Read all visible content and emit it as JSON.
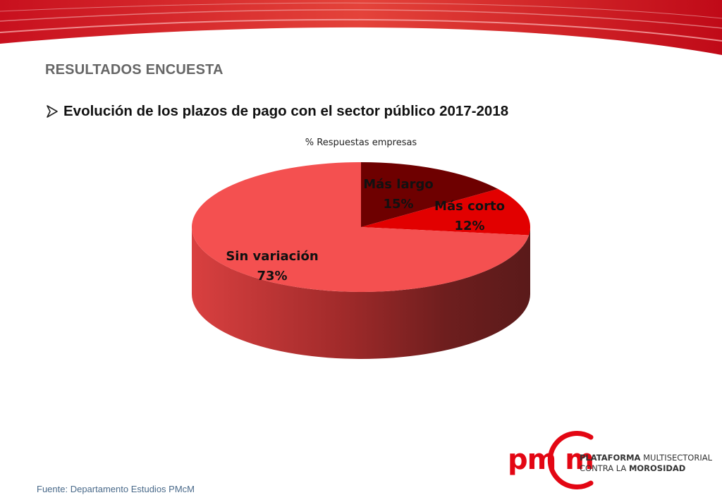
{
  "header": {
    "section_title": "RESULTADOS ENCUESTA",
    "bullet_title": "Evolución de los plazos de pago con el sector público 2017-2018"
  },
  "chart_data": {
    "type": "pie",
    "title": "% Respuestas empresas",
    "style": "3d",
    "slices": [
      {
        "name": "Más largo",
        "value": 15,
        "label": "15%",
        "color": "#6e0000"
      },
      {
        "name": "Más corto",
        "value": 12,
        "label": "12%",
        "color": "#e20000"
      },
      {
        "name": "Sin variación",
        "value": 73,
        "label": "73%",
        "color": "#f45050"
      }
    ]
  },
  "logo": {
    "letters": "pm m",
    "line1_bold": "PLATAFORMA",
    "line1_rest": " MULTISECTORIAL",
    "line2_rest": "CONTRA LA ",
    "line2_bold": "MOROSIDAD",
    "color": "#e30613"
  },
  "footer": {
    "source": "Fuente: Departamento Estudios PMcM"
  }
}
